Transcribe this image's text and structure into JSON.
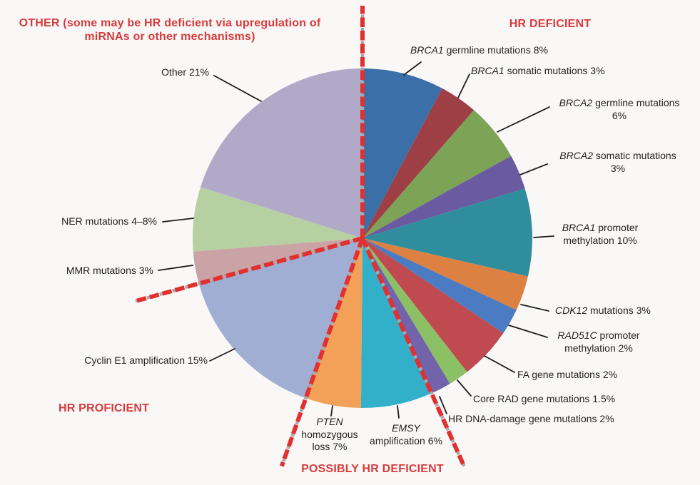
{
  "figure": {
    "headings": {
      "other": "OTHER (some may be HR deficient via upregulation of miRNAs or other mechanisms)",
      "hr_deficient": "HR DEFICIENT",
      "hr_proficient": "HR PROFICIENT",
      "possibly_hr_deficient": "POSSIBLY HR DEFICIENT"
    },
    "colors": {
      "heading_red": "#d93a3c",
      "dash_red": "#e23030",
      "dash_gray": "#a9a9a9",
      "leader_black": "#1c1c1c",
      "label_text": "#232323",
      "background": "#f9f8f6"
    }
  },
  "chart_data": {
    "type": "pie",
    "title": "",
    "labels_style": "external callouts with leader lines",
    "legend_position": "none",
    "groups": [
      {
        "name": "HR DEFICIENT",
        "from_deg": 0,
        "to_deg": 156
      },
      {
        "name": "POSSIBLY HR DEFICIENT",
        "from_deg": 156,
        "to_deg": 199.5
      },
      {
        "name": "HR PROFICIENT",
        "from_deg": 199.5,
        "to_deg": 254.5
      },
      {
        "name": "OTHER",
        "from_deg": 254.5,
        "to_deg": 360
      }
    ],
    "slices": [
      {
        "name": "BRCA1 germline mutations",
        "percent_label": "8%",
        "value": 8,
        "color": "#3b6fa7",
        "deg": 28,
        "group": "HR DEFICIENT",
        "callout_lines": [
          [
            {
              "t": "BRCA1",
              "i": 1
            },
            {
              "t": " germline mutations 8%"
            }
          ]
        ]
      },
      {
        "name": "BRCA1 somatic mutations",
        "percent_label": "3%",
        "value": 3,
        "color": "#9e3f46",
        "deg": 13,
        "group": "HR DEFICIENT",
        "callout_lines": [
          [
            {
              "t": "BRCA1",
              "i": 1
            },
            {
              "t": " somatic mutations 3%"
            }
          ]
        ]
      },
      {
        "name": "BRCA2 germline mutations",
        "percent_label": "6%",
        "value": 6,
        "color": "#7da356",
        "deg": 20,
        "group": "HR DEFICIENT",
        "callout_lines": [
          [
            {
              "t": "BRCA2",
              "i": 1
            },
            {
              "t": " germline mutations"
            }
          ],
          [
            {
              "t": "6%"
            }
          ]
        ]
      },
      {
        "name": "BRCA2 somatic mutations",
        "percent_label": "3%",
        "value": 3,
        "color": "#6a5aa0",
        "deg": 12,
        "group": "HR DEFICIENT",
        "callout_lines": [
          [
            {
              "t": "BRCA2",
              "i": 1
            },
            {
              "t": " somatic mutations"
            }
          ],
          [
            {
              "t": "3%"
            }
          ]
        ]
      },
      {
        "name": "BRCA1 promoter methylation",
        "percent_label": "10%",
        "value": 10,
        "color": "#2f8d9e",
        "deg": 30,
        "group": "HR DEFICIENT",
        "callout_lines": [
          [
            {
              "t": "BRCA1",
              "i": 1
            },
            {
              "t": " promoter"
            }
          ],
          [
            {
              "t": "methylation 10%"
            }
          ]
        ]
      },
      {
        "name": "CDK12 mutations",
        "percent_label": "3%",
        "value": 3,
        "color": "#dc8142",
        "deg": 12,
        "group": "HR DEFICIENT",
        "callout_lines": [
          [
            {
              "t": "CDK12",
              "i": 1
            },
            {
              "t": " mutations 3%"
            }
          ]
        ]
      },
      {
        "name": "RAD51C promoter methylation",
        "percent_label": "2%",
        "value": 2,
        "color": "#4a7bc3",
        "deg": 9,
        "group": "HR DEFICIENT",
        "callout_lines": [
          [
            {
              "t": "RAD51C",
              "i": 1
            },
            {
              "t": " promoter"
            }
          ],
          [
            {
              "t": "methylation 2%"
            }
          ]
        ]
      },
      {
        "name": "FA gene mutations",
        "percent_label": "2%",
        "value": 2,
        "color": "#bf4a50",
        "deg": 18,
        "group": "HR DEFICIENT",
        "callout_lines": [
          [
            {
              "t": "FA gene mutations 2%"
            }
          ]
        ]
      },
      {
        "name": "Core RAD gene mutations",
        "percent_label": "1.5%",
        "value": 1.5,
        "color": "#8cc064",
        "deg": 7,
        "group": "HR DEFICIENT",
        "callout_lines": [
          [
            {
              "t": "Core RAD gene mutations 1.5%"
            }
          ]
        ]
      },
      {
        "name": "HR DNA-damage gene mutations",
        "percent_label": "2%",
        "value": 2,
        "color": "#7263ab",
        "deg": 7,
        "group": "HR DEFICIENT",
        "callout_lines": [
          [
            {
              "t": "HR DNA-damage gene mutations 2%"
            }
          ]
        ]
      },
      {
        "name": "EMSY amplification",
        "percent_label": "6%",
        "value": 6,
        "color": "#33b0c9",
        "deg": 24.5,
        "group": "POSSIBLY HR DEFICIENT",
        "callout_lines": [
          [
            {
              "t": "EMSY",
              "i": 1
            }
          ],
          [
            {
              "t": "amplification 6%"
            }
          ]
        ]
      },
      {
        "name": "PTEN homozygous loss",
        "percent_label": "7%",
        "value": 7,
        "color": "#f3a159",
        "deg": 19,
        "group": "POSSIBLY HR DEFICIENT",
        "callout_lines": [
          [
            {
              "t": "PTEN",
              "i": 1
            }
          ],
          [
            {
              "t": "homozygous"
            }
          ],
          [
            {
              "t": "loss 7%"
            }
          ]
        ]
      },
      {
        "name": "Cyclin E1 amplification",
        "percent_label": "15%",
        "value": 15,
        "color": "#a1aed3",
        "deg": 55,
        "group": "HR PROFICIENT",
        "callout_lines": [
          [
            {
              "t": "Cyclin E1 amplification 15%"
            }
          ]
        ]
      },
      {
        "name": "MMR mutations",
        "percent_label": "3%",
        "value": 3,
        "color": "#caa3a7",
        "deg": 11,
        "group": "OTHER",
        "callout_lines": [
          [
            {
              "t": "MMR mutations 3%"
            }
          ]
        ]
      },
      {
        "name": "NER mutations",
        "percent_label": "4–8%",
        "value": 6,
        "value_min": 4,
        "value_max": 8,
        "color": "#b6d0a2",
        "deg": 22,
        "group": "OTHER",
        "callout_lines": [
          [
            {
              "t": "NER mutations 4–8%"
            }
          ]
        ]
      },
      {
        "name": "Other",
        "percent_label": "21%",
        "value": 21,
        "color": "#b0aac8",
        "deg": 72.5,
        "group": "OTHER",
        "callout_lines": [
          [
            {
              "t": "Other 21%"
            }
          ]
        ]
      }
    ]
  }
}
